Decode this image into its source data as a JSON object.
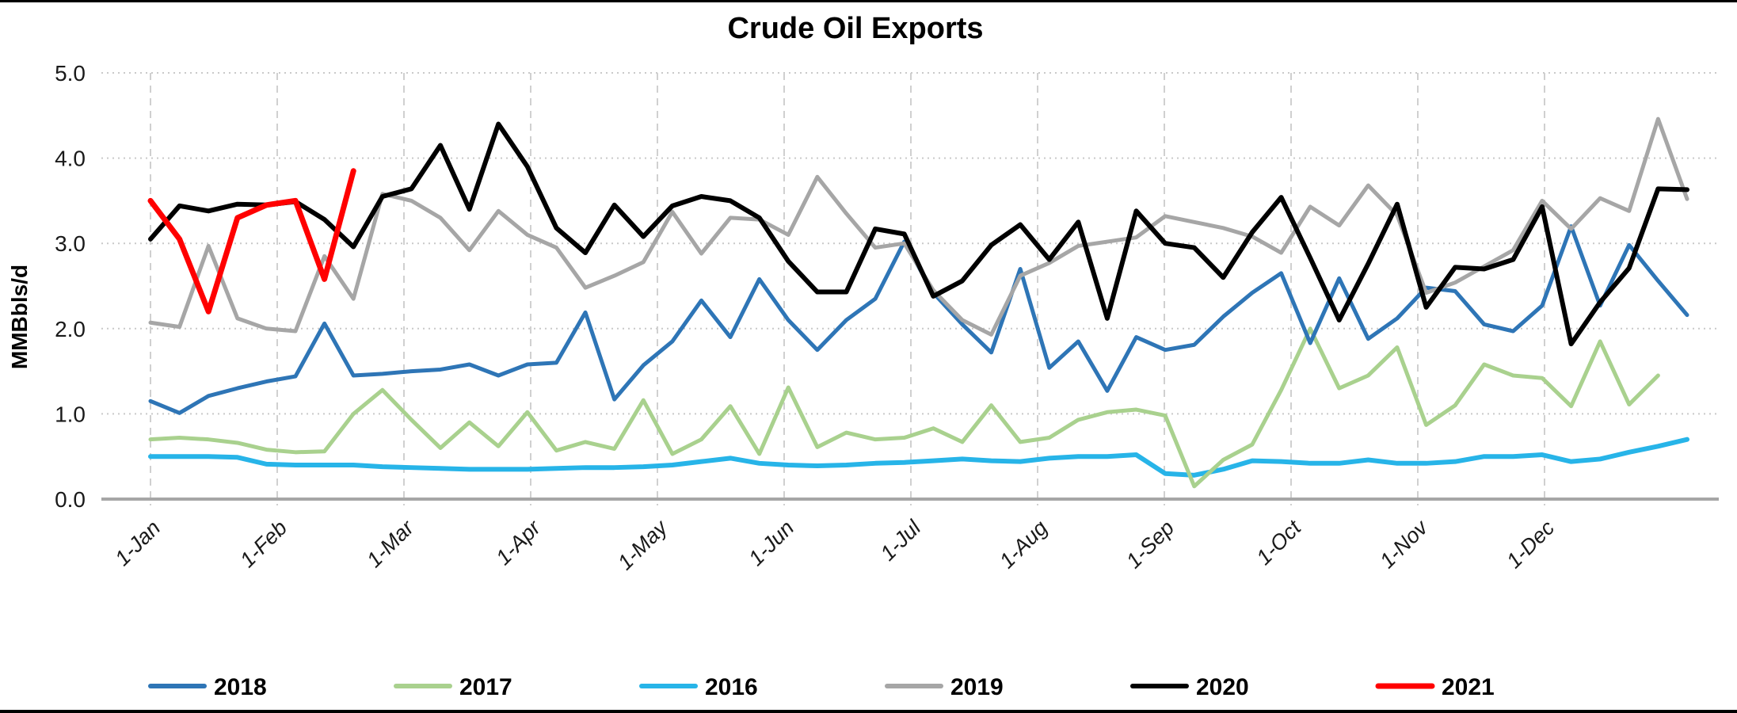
{
  "page": {
    "title": "Crude Oil Exports",
    "y_axis_label": "MMBbls/d"
  },
  "chart_data": {
    "type": "line",
    "title": "Crude Oil Exports",
    "xlabel": "",
    "ylabel": "MMBbls/d",
    "ylim": [
      0.0,
      5.0
    ],
    "yticks": [
      "0.0",
      "1.0",
      "2.0",
      "3.0",
      "4.0",
      "5.0"
    ],
    "x_unit": "weekly points, Jan through Dec",
    "xticklabels": [
      "1-Jan",
      "1-Feb",
      "1-Mar",
      "1-Apr",
      "1-May",
      "1-Jun",
      "1-Jul",
      "1-Aug",
      "1-Sep",
      "1-Oct",
      "1-Nov",
      "1-Dec"
    ],
    "grid": {
      "horizontal": "dotted",
      "vertical": "dashed"
    },
    "legend_position": "bottom",
    "legend_order": [
      "2018",
      "2017",
      "2016",
      "2019",
      "2020",
      "2021"
    ],
    "series": [
      {
        "name": "2018",
        "color": "#2E75B6",
        "width": 5,
        "values": [
          1.15,
          1.01,
          1.21,
          1.3,
          1.38,
          1.44,
          2.06,
          1.45,
          1.47,
          1.5,
          1.52,
          1.58,
          1.45,
          1.58,
          1.6,
          2.19,
          1.17,
          1.57,
          1.85,
          2.33,
          1.9,
          2.58,
          2.1,
          1.75,
          2.1,
          2.35,
          3.02,
          2.42,
          2.05,
          1.72,
          2.7,
          1.54,
          1.85,
          1.27,
          1.9,
          1.75,
          1.81,
          2.14,
          2.42,
          2.65,
          1.83,
          2.59,
          1.88,
          2.12,
          2.48,
          2.44,
          2.05,
          1.97,
          2.27,
          3.2,
          2.27,
          2.98,
          2.56,
          2.16
        ]
      },
      {
        "name": "2017",
        "color": "#A9D18E",
        "width": 5,
        "values": [
          0.7,
          0.72,
          0.7,
          0.66,
          0.58,
          0.55,
          0.56,
          1.0,
          1.28,
          0.93,
          0.6,
          0.9,
          0.62,
          1.02,
          0.57,
          0.67,
          0.59,
          1.16,
          0.53,
          0.7,
          1.09,
          0.53,
          1.31,
          0.61,
          0.78,
          0.7,
          0.72,
          0.83,
          0.67,
          1.1,
          0.67,
          0.72,
          0.93,
          1.02,
          1.05,
          0.98,
          0.15,
          0.46,
          0.64,
          1.28,
          2.0,
          1.3,
          1.45,
          1.78,
          0.87,
          1.1,
          1.58,
          1.45,
          1.42,
          1.09,
          1.85,
          1.11,
          1.45
        ]
      },
      {
        "name": "2016",
        "color": "#27B4E8",
        "width": 6,
        "values": [
          0.5,
          0.5,
          0.5,
          0.49,
          0.41,
          0.4,
          0.4,
          0.4,
          0.38,
          0.37,
          0.36,
          0.35,
          0.35,
          0.35,
          0.36,
          0.37,
          0.37,
          0.38,
          0.4,
          0.44,
          0.48,
          0.42,
          0.4,
          0.39,
          0.4,
          0.42,
          0.43,
          0.45,
          0.47,
          0.45,
          0.44,
          0.48,
          0.5,
          0.5,
          0.52,
          0.3,
          0.28,
          0.35,
          0.45,
          0.44,
          0.42,
          0.42,
          0.46,
          0.42,
          0.42,
          0.44,
          0.5,
          0.5,
          0.52,
          0.44,
          0.47,
          0.55,
          0.62,
          0.7
        ]
      },
      {
        "name": "2019",
        "color": "#A6A6A6",
        "width": 5,
        "values": [
          2.07,
          2.02,
          2.97,
          2.12,
          2.0,
          1.97,
          2.85,
          2.35,
          3.58,
          3.5,
          3.3,
          2.92,
          3.38,
          3.1,
          2.95,
          2.48,
          2.62,
          2.78,
          3.37,
          2.88,
          3.3,
          3.28,
          3.1,
          3.78,
          3.35,
          2.95,
          3.0,
          2.45,
          2.1,
          1.93,
          2.62,
          2.77,
          2.97,
          3.02,
          3.07,
          3.32,
          3.25,
          3.18,
          3.08,
          2.89,
          3.43,
          3.21,
          3.68,
          3.33,
          2.42,
          2.54,
          2.73,
          2.92,
          3.5,
          3.17,
          3.53,
          3.38,
          4.46,
          3.52
        ]
      },
      {
        "name": "2020",
        "color": "#000000",
        "width": 6,
        "values": [
          3.05,
          3.44,
          3.38,
          3.46,
          3.45,
          3.49,
          3.28,
          2.96,
          3.55,
          3.64,
          4.15,
          3.4,
          4.4,
          3.9,
          3.18,
          2.89,
          3.45,
          3.08,
          3.44,
          3.55,
          3.5,
          3.3,
          2.79,
          2.43,
          2.43,
          3.17,
          3.11,
          2.38,
          2.56,
          2.98,
          3.22,
          2.81,
          3.25,
          2.12,
          3.38,
          3.0,
          2.95,
          2.6,
          3.13,
          3.54,
          2.83,
          2.1,
          2.76,
          3.46,
          2.25,
          2.72,
          2.7,
          2.81,
          3.43,
          1.82,
          2.31,
          2.71,
          3.64,
          3.63
        ]
      },
      {
        "name": "2021",
        "color": "#FF0000",
        "width": 7,
        "values": [
          3.5,
          3.05,
          2.2,
          3.3,
          3.45,
          3.5,
          2.58,
          3.85
        ]
      }
    ]
  }
}
